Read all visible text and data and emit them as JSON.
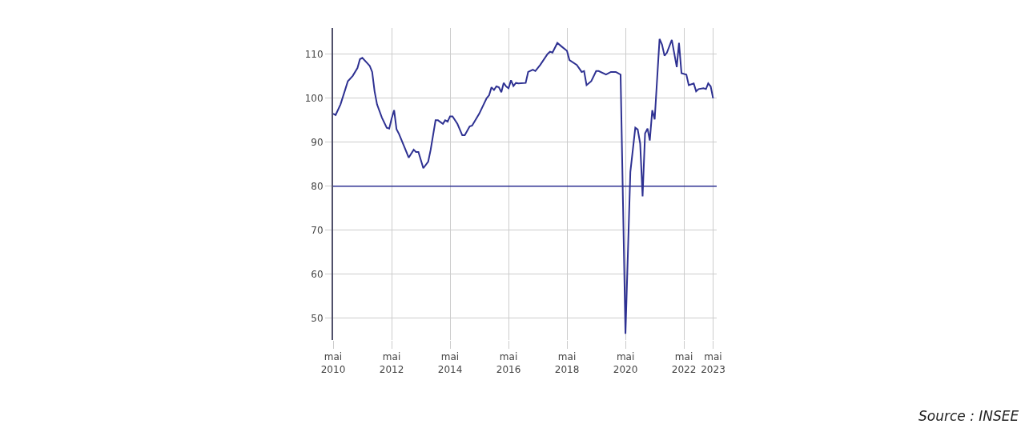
{
  "chart_data": {
    "type": "line",
    "x": [
      "2010-05",
      "2010-06",
      "2010-08",
      "2010-10",
      "2010-11",
      "2011-01",
      "2011-03",
      "2011-04",
      "2011-05",
      "2011-07",
      "2011-08",
      "2011-09",
      "2011-10",
      "2011-11",
      "2012-01",
      "2012-03",
      "2012-04",
      "2012-05",
      "2012-06",
      "2012-07",
      "2012-08",
      "2012-10",
      "2012-12",
      "2013-02",
      "2013-03",
      "2013-04",
      "2013-06",
      "2013-08",
      "2013-09",
      "2013-11",
      "2013-12",
      "2014-02",
      "2014-03",
      "2014-04",
      "2014-05",
      "2014-06",
      "2014-08",
      "2014-10",
      "2014-11",
      "2015-01",
      "2015-02",
      "2015-05",
      "2015-08",
      "2015-09",
      "2015-10",
      "2015-11",
      "2015-12",
      "2016-01",
      "2016-02",
      "2016-03",
      "2016-04",
      "2016-05",
      "2016-06",
      "2016-07",
      "2016-08",
      "2016-09",
      "2016-12",
      "2017-01",
      "2017-03",
      "2017-04",
      "2017-06",
      "2017-09",
      "2017-10",
      "2017-11",
      "2018-01",
      "2018-03",
      "2018-05",
      "2018-06",
      "2018-09",
      "2018-11",
      "2018-12",
      "2019-01",
      "2019-03",
      "2019-05",
      "2019-06",
      "2019-09",
      "2019-11",
      "2020-01",
      "2020-02",
      "2020-03",
      "2020-05",
      "2020-07",
      "2020-09",
      "2020-10",
      "2020-11",
      "2020-12",
      "2021-01",
      "2021-02",
      "2021-03",
      "2021-04",
      "2021-05",
      "2021-07",
      "2021-08",
      "2021-09",
      "2021-10",
      "2021-12",
      "2022-02",
      "2022-03",
      "2022-04",
      "2022-06",
      "2022-07",
      "2022-09",
      "2022-10",
      "2022-11",
      "2023-01",
      "2023-02",
      "2023-03",
      "2023-04",
      "2023-05"
    ],
    "series": [
      {
        "color": "#2e3192",
        "values": [
          96.5,
          96.2,
          98.6,
          102.1,
          103.9,
          105.1,
          106.9,
          108.9,
          109.2,
          108,
          107.4,
          106,
          101.6,
          98.6,
          95.6,
          93.3,
          93.1,
          95.4,
          97.3,
          93,
          91.9,
          89.2,
          86.5,
          88.3,
          87.8,
          87.8,
          84.1,
          85.6,
          88.3,
          95,
          95,
          94.2,
          95,
          94.7,
          95.9,
          95.9,
          94.2,
          91.6,
          91.6,
          93.6,
          93.8,
          96.5,
          100,
          100.7,
          102.5,
          101.9,
          102.7,
          102.5,
          101.4,
          103.5,
          102.7,
          102.3,
          104.1,
          102.8,
          103.5,
          103.4,
          103.5,
          106,
          106.5,
          106.2,
          107.6,
          110.1,
          110.6,
          110.4,
          112.6,
          111.7,
          110.8,
          108.7,
          107.6,
          106,
          106.2,
          103,
          103.9,
          106.2,
          106.2,
          105.4,
          106,
          106,
          105.7,
          105.4,
          46.4,
          83.2,
          93.3,
          92.9,
          89.7,
          77.7,
          92,
          93.1,
          90.4,
          97.3,
          95.2,
          113.5,
          112.2,
          109.7,
          110.4,
          113.3,
          107.1,
          112.6,
          105.7,
          105.4,
          103,
          103.4,
          101.6,
          102.1,
          102.3,
          102.1,
          103.4,
          102.7,
          100
        ]
      }
    ],
    "xlim": [
      "2010-05",
      "2023-06-15"
    ],
    "xticks": [
      {
        "value": "2010-05",
        "label": "mai\n2010"
      },
      {
        "value": "2012-05",
        "label": "mai\n2012"
      },
      {
        "value": "2014-05",
        "label": "mai\n2014"
      },
      {
        "value": "2016-05",
        "label": "mai\n2016"
      },
      {
        "value": "2018-05",
        "label": "mai\n2018"
      },
      {
        "value": "2020-05",
        "label": "mai\n2020"
      },
      {
        "value": "2022-05",
        "label": "mai\n2022"
      },
      {
        "value": "2023-05",
        "label": "mai\n2023"
      }
    ],
    "ylim": [
      45,
      116
    ],
    "yticks": [
      50,
      60,
      70,
      80,
      90,
      100,
      110
    ],
    "grid": true,
    "ref_lines": [
      {
        "axis": "y",
        "value": 80,
        "color": "#2e3192"
      }
    ],
    "annotations": [
      "Source : INSEE"
    ]
  }
}
